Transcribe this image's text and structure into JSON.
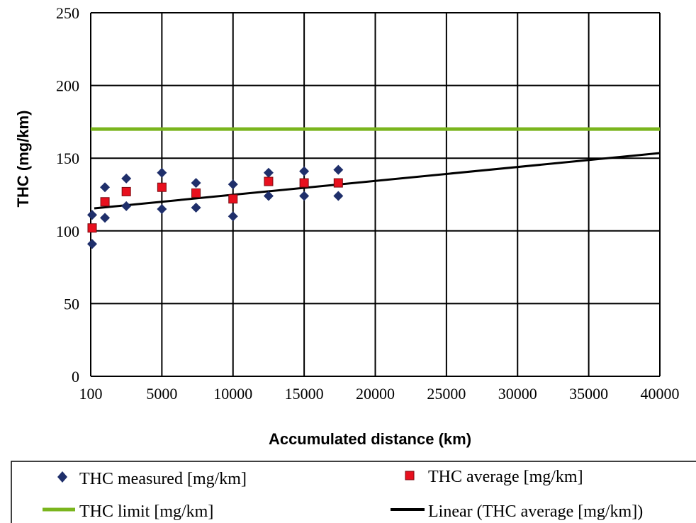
{
  "chart_data": {
    "type": "scatter",
    "title": "",
    "xlabel": "Accumulated distance (km)",
    "ylabel": "THC  (mg/km)",
    "xlim": [
      0,
      40000
    ],
    "ylim": [
      0,
      250
    ],
    "x_tick_labels": [
      {
        "value": 0,
        "label": "100"
      },
      {
        "value": 5000,
        "label": "5000"
      },
      {
        "value": 10000,
        "label": "10000"
      },
      {
        "value": 15000,
        "label": "15000"
      },
      {
        "value": 20000,
        "label": "20000"
      },
      {
        "value": 25000,
        "label": "25000"
      },
      {
        "value": 30000,
        "label": "30000"
      },
      {
        "value": 35000,
        "label": "35000"
      },
      {
        "value": 40000,
        "label": "40000"
      }
    ],
    "y_ticks": [
      0,
      50,
      100,
      150,
      200,
      250
    ],
    "grid": true,
    "legend_position": "bottom",
    "series": [
      {
        "name": "THC measured [mg/km]",
        "marker": "diamond",
        "color": "#1f2f6b",
        "points": [
          {
            "x": 100,
            "y": 111
          },
          {
            "x": 100,
            "y": 91
          },
          {
            "x": 1000,
            "y": 130
          },
          {
            "x": 1000,
            "y": 109
          },
          {
            "x": 2500,
            "y": 136
          },
          {
            "x": 2500,
            "y": 117
          },
          {
            "x": 5000,
            "y": 140
          },
          {
            "x": 5000,
            "y": 115
          },
          {
            "x": 7400,
            "y": 133
          },
          {
            "x": 7400,
            "y": 116
          },
          {
            "x": 10000,
            "y": 132
          },
          {
            "x": 10000,
            "y": 110
          },
          {
            "x": 12500,
            "y": 140
          },
          {
            "x": 12500,
            "y": 124
          },
          {
            "x": 15000,
            "y": 141
          },
          {
            "x": 15000,
            "y": 124
          },
          {
            "x": 17400,
            "y": 142
          },
          {
            "x": 17400,
            "y": 124
          }
        ]
      },
      {
        "name": "THC average [mg/km]",
        "marker": "square",
        "color": "#e8101e",
        "points": [
          {
            "x": 100,
            "y": 102
          },
          {
            "x": 1000,
            "y": 120
          },
          {
            "x": 2500,
            "y": 127
          },
          {
            "x": 5000,
            "y": 130
          },
          {
            "x": 7400,
            "y": 126
          },
          {
            "x": 10000,
            "y": 122
          },
          {
            "x": 12500,
            "y": 134
          },
          {
            "x": 15000,
            "y": 133
          },
          {
            "x": 17400,
            "y": 133
          }
        ]
      },
      {
        "name": "THC limit [mg/km]",
        "marker": "line",
        "color": "#7ab51d",
        "points": [
          {
            "x": 0,
            "y": 170
          },
          {
            "x": 40000,
            "y": 170
          }
        ]
      },
      {
        "name": "Linear (THC average [mg/km])",
        "marker": "line",
        "color": "#000000",
        "points": [
          {
            "x": 250,
            "y": 115.5
          },
          {
            "x": 40000,
            "y": 153.5
          }
        ]
      }
    ]
  }
}
